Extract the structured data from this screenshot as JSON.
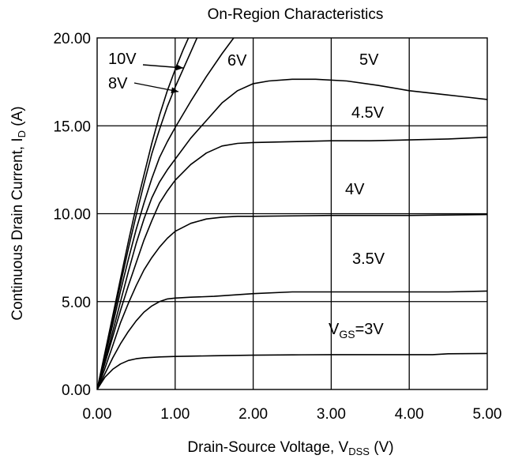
{
  "chart_data": {
    "type": "line",
    "title": "On-Region Characteristics",
    "xlabel": {
      "main": "Drain-Source Voltage, V",
      "sub": "DSS",
      "tail": " (V)"
    },
    "ylabel": {
      "main": "Continuous Drain Current, I",
      "sub": "D",
      "tail": " (A)"
    },
    "xlim": [
      0,
      5
    ],
    "ylim": [
      0,
      20
    ],
    "x_ticks": [
      "0.00",
      "1.00",
      "2.00",
      "3.00",
      "4.00",
      "5.00"
    ],
    "y_ticks": [
      "0.00",
      "5.00",
      "10.00",
      "15.00",
      "20.00"
    ],
    "grid": true,
    "series": [
      {
        "name": "10V",
        "label": {
          "text": "10V"
        },
        "points": [
          [
            0,
            0
          ],
          [
            0.1,
            2.1
          ],
          [
            0.2,
            4.2
          ],
          [
            0.3,
            6.3
          ],
          [
            0.4,
            8.4
          ],
          [
            0.5,
            10.4
          ],
          [
            0.6,
            12.2
          ],
          [
            0.7,
            14.0
          ],
          [
            0.8,
            15.6
          ],
          [
            0.9,
            17.0
          ],
          [
            1.0,
            18.2
          ],
          [
            1.1,
            19.3
          ],
          [
            1.2,
            20.3
          ]
        ]
      },
      {
        "name": "8V",
        "label": {
          "text": "8V"
        },
        "points": [
          [
            0,
            0
          ],
          [
            0.1,
            2.0
          ],
          [
            0.2,
            4.0
          ],
          [
            0.3,
            6.0
          ],
          [
            0.4,
            8.0
          ],
          [
            0.5,
            9.9
          ],
          [
            0.6,
            11.7
          ],
          [
            0.7,
            13.4
          ],
          [
            0.8,
            14.8
          ],
          [
            0.9,
            16.1
          ],
          [
            1.0,
            17.2
          ],
          [
            1.1,
            18.2
          ],
          [
            1.2,
            19.2
          ],
          [
            1.3,
            20.2
          ]
        ]
      },
      {
        "name": "6V",
        "label": {
          "text": "6V"
        },
        "points": [
          [
            0,
            0
          ],
          [
            0.1,
            1.85
          ],
          [
            0.2,
            3.7
          ],
          [
            0.3,
            5.6
          ],
          [
            0.4,
            7.4
          ],
          [
            0.5,
            9.1
          ],
          [
            0.6,
            10.6
          ],
          [
            0.7,
            12.0
          ],
          [
            0.8,
            13.2
          ],
          [
            0.9,
            14.1
          ],
          [
            1.0,
            14.9
          ],
          [
            1.2,
            16.4
          ],
          [
            1.4,
            17.8
          ],
          [
            1.6,
            19.1
          ],
          [
            1.75,
            20.0
          ]
        ]
      },
      {
        "name": "5V",
        "label": {
          "text": "5V"
        },
        "points": [
          [
            0,
            0
          ],
          [
            0.1,
            1.6
          ],
          [
            0.2,
            3.3
          ],
          [
            0.3,
            5.0
          ],
          [
            0.4,
            6.7
          ],
          [
            0.5,
            8.3
          ],
          [
            0.6,
            9.7
          ],
          [
            0.7,
            10.9
          ],
          [
            0.8,
            11.8
          ],
          [
            0.9,
            12.5
          ],
          [
            1.0,
            13.1
          ],
          [
            1.2,
            14.3
          ],
          [
            1.4,
            15.3
          ],
          [
            1.6,
            16.3
          ],
          [
            1.8,
            17.0
          ],
          [
            2.0,
            17.4
          ],
          [
            2.2,
            17.55
          ],
          [
            2.5,
            17.65
          ],
          [
            2.8,
            17.65
          ],
          [
            3.2,
            17.55
          ],
          [
            3.6,
            17.3
          ],
          [
            4.0,
            17.0
          ],
          [
            4.4,
            16.8
          ],
          [
            4.7,
            16.65
          ],
          [
            5.0,
            16.5
          ]
        ]
      },
      {
        "name": "4.5V",
        "label": {
          "text": "4.5V"
        },
        "points": [
          [
            0,
            0
          ],
          [
            0.1,
            1.5
          ],
          [
            0.2,
            3.0
          ],
          [
            0.3,
            4.5
          ],
          [
            0.4,
            5.9
          ],
          [
            0.5,
            7.2
          ],
          [
            0.6,
            8.5
          ],
          [
            0.7,
            9.6
          ],
          [
            0.8,
            10.6
          ],
          [
            0.9,
            11.3
          ],
          [
            1.0,
            11.9
          ],
          [
            1.2,
            12.8
          ],
          [
            1.4,
            13.45
          ],
          [
            1.6,
            13.85
          ],
          [
            1.8,
            14.0
          ],
          [
            2.0,
            14.05
          ],
          [
            2.5,
            14.1
          ],
          [
            3.0,
            14.15
          ],
          [
            3.5,
            14.15
          ],
          [
            4.0,
            14.2
          ],
          [
            4.5,
            14.25
          ],
          [
            5.0,
            14.35
          ]
        ]
      },
      {
        "name": "4V",
        "label": {
          "text": "4V"
        },
        "points": [
          [
            0,
            0
          ],
          [
            0.1,
            1.2
          ],
          [
            0.2,
            2.5
          ],
          [
            0.3,
            3.8
          ],
          [
            0.4,
            4.9
          ],
          [
            0.5,
            5.9
          ],
          [
            0.6,
            6.8
          ],
          [
            0.7,
            7.5
          ],
          [
            0.8,
            8.1
          ],
          [
            0.9,
            8.6
          ],
          [
            1.0,
            9.0
          ],
          [
            1.2,
            9.45
          ],
          [
            1.4,
            9.7
          ],
          [
            1.6,
            9.8
          ],
          [
            1.8,
            9.85
          ],
          [
            2.0,
            9.85
          ],
          [
            3.0,
            9.9
          ],
          [
            4.0,
            9.9
          ],
          [
            5.0,
            9.95
          ]
        ]
      },
      {
        "name": "3.5V",
        "label": {
          "text": "3.5V"
        },
        "points": [
          [
            0,
            0
          ],
          [
            0.1,
            0.9
          ],
          [
            0.2,
            1.8
          ],
          [
            0.3,
            2.6
          ],
          [
            0.4,
            3.3
          ],
          [
            0.5,
            3.9
          ],
          [
            0.6,
            4.4
          ],
          [
            0.7,
            4.75
          ],
          [
            0.8,
            5.0
          ],
          [
            0.9,
            5.15
          ],
          [
            1.0,
            5.2
          ],
          [
            1.2,
            5.25
          ],
          [
            1.5,
            5.3
          ],
          [
            2.0,
            5.45
          ],
          [
            2.5,
            5.55
          ],
          [
            3.0,
            5.55
          ],
          [
            3.5,
            5.55
          ],
          [
            4.0,
            5.55
          ],
          [
            4.5,
            5.55
          ],
          [
            5.0,
            5.6
          ]
        ]
      },
      {
        "name": "VGS=3V",
        "label": {
          "main": "V",
          "sub": "GS",
          "tail": "=3V"
        },
        "points": [
          [
            0,
            0
          ],
          [
            0.05,
            0.35
          ],
          [
            0.1,
            0.7
          ],
          [
            0.2,
            1.15
          ],
          [
            0.3,
            1.45
          ],
          [
            0.4,
            1.65
          ],
          [
            0.5,
            1.75
          ],
          [
            0.6,
            1.8
          ],
          [
            0.8,
            1.85
          ],
          [
            1.0,
            1.88
          ],
          [
            1.5,
            1.92
          ],
          [
            2.0,
            1.95
          ],
          [
            2.5,
            1.97
          ],
          [
            3.0,
            1.98
          ],
          [
            3.5,
            1.98
          ],
          [
            4.0,
            1.98
          ],
          [
            4.3,
            1.98
          ],
          [
            4.5,
            2.03
          ],
          [
            5.0,
            2.05
          ]
        ]
      }
    ]
  }
}
